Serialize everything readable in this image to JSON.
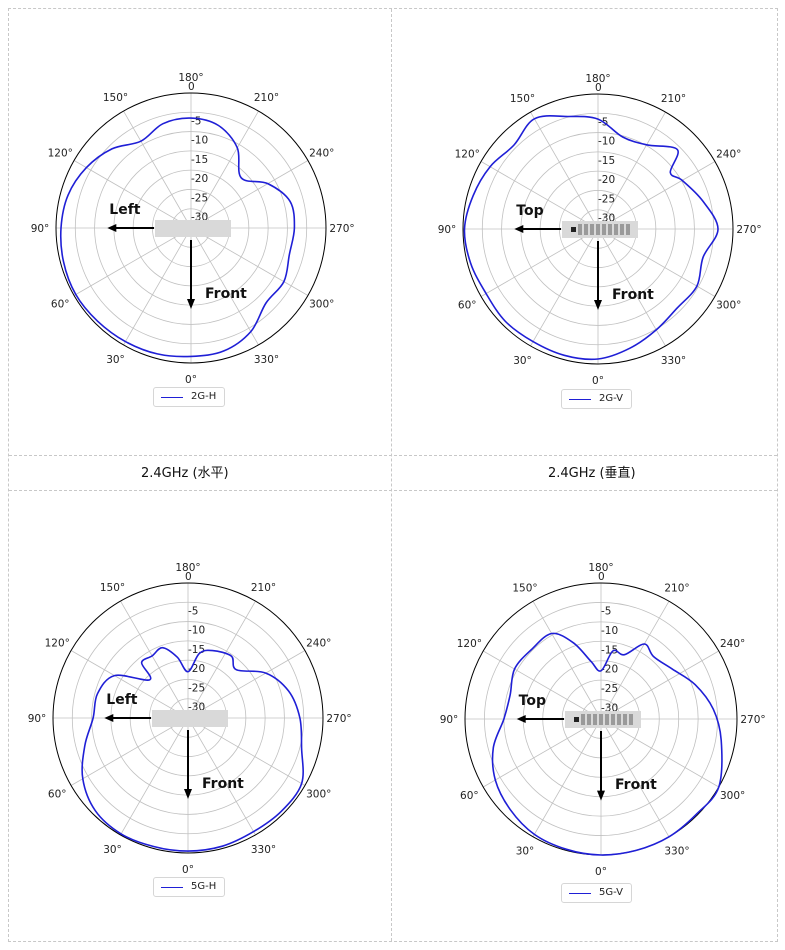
{
  "colors": {
    "series": "#1f1fd6",
    "grid": "#c0c0c0",
    "outer": "#000000",
    "arrow": "#000000",
    "device": "#d9d9d9"
  },
  "captions": [
    "2.4GHz (水平)",
    "2.4GHz (垂直)"
  ],
  "chart_data": [
    {
      "type": "polar-line",
      "legend": "2G-H",
      "legend_position": "bottom-left",
      "direction_labels": {
        "arrow_left": "Left",
        "arrow_down": "Front"
      },
      "angle_ticks": [
        "0°",
        "30°",
        "60°",
        "90°",
        "120°",
        "150°",
        "180°",
        "210°",
        "240°",
        "270°",
        "300°",
        "330°"
      ],
      "radial_ticks": [
        "0",
        "-5",
        "-10",
        "-15",
        "-20",
        "-25",
        "-30"
      ],
      "rlim": [
        -35,
        0
      ],
      "zero_angle": "bottom",
      "angle_direction": "clockwise",
      "grid": true,
      "series": [
        {
          "name": "2G-H",
          "angles": [
            0,
            15,
            30,
            45,
            60,
            75,
            90,
            105,
            120,
            135,
            150,
            165,
            180,
            195,
            210,
            225,
            240,
            255,
            270,
            285,
            300,
            315,
            330,
            345
          ],
          "values": [
            -1.7,
            -1.2,
            -1,
            -0.8,
            -0.5,
            -0.8,
            -1.3,
            -2,
            -3.7,
            -6,
            -9,
            -7,
            -6.5,
            -7.5,
            -11,
            -16.6,
            -12,
            -8.4,
            -8.2,
            -8.6,
            -7.2,
            -7.5,
            -4,
            -2
          ]
        }
      ]
    },
    {
      "type": "polar-line",
      "legend": "2G-V",
      "legend_position": "bottom-left",
      "direction_labels": {
        "arrow_left": "Top",
        "arrow_down": "Front"
      },
      "angle_ticks": [
        "0°",
        "30°",
        "60°",
        "90°",
        "120°",
        "150°",
        "180°",
        "210°",
        "240°",
        "270°",
        "300°",
        "330°"
      ],
      "radial_ticks": [
        "0",
        "-5",
        "-10",
        "-15",
        "-20",
        "-25",
        "-30"
      ],
      "rlim": [
        -35,
        0
      ],
      "zero_angle": "bottom",
      "angle_direction": "clockwise",
      "grid": true,
      "series": [
        {
          "name": "2G-V",
          "angles": [
            0,
            15,
            30,
            45,
            60,
            75,
            90,
            105,
            120,
            135,
            150,
            165,
            180,
            195,
            210,
            225,
            232,
            240,
            255,
            270,
            285,
            300,
            315,
            330,
            345
          ],
          "values": [
            -1.3,
            -1.1,
            -1.3,
            -1.1,
            -1.5,
            -0.8,
            -0.4,
            -1.5,
            -2.7,
            -4.2,
            -2,
            -4.8,
            -6.5,
            -10.3,
            -9.8,
            -5.9,
            -11.2,
            -9.8,
            -6.9,
            -3.9,
            -6.8,
            -5.4,
            -6,
            -4.8,
            -3
          ]
        }
      ]
    },
    {
      "type": "polar-line",
      "legend": "5G-H",
      "legend_position": "bottom-left",
      "direction_labels": {
        "arrow_left": "Left",
        "arrow_down": "Front"
      },
      "angle_ticks": [
        "0°",
        "30°",
        "60°",
        "90°",
        "120°",
        "150°",
        "180°",
        "210°",
        "240°",
        "270°",
        "300°",
        "330°"
      ],
      "radial_ticks": [
        "0",
        "-5",
        "-10",
        "-15",
        "-20",
        "-25",
        "-30"
      ],
      "rlim": [
        -35,
        0
      ],
      "zero_angle": "bottom",
      "angle_direction": "clockwise",
      "grid": true,
      "series": [
        {
          "name": "5G-H",
          "angles": [
            0,
            15,
            30,
            45,
            60,
            75,
            90,
            105,
            120,
            135,
            140,
            150,
            160,
            170,
            180,
            190,
            200,
            215,
            225,
            240,
            255,
            270,
            285,
            300,
            315,
            330,
            345
          ],
          "values": [
            -0.5,
            -0.5,
            -0.3,
            -1,
            -3.5,
            -7.3,
            -10.4,
            -10.7,
            -13,
            -21,
            -16.3,
            -16.4,
            -15.6,
            -19,
            -23,
            -18,
            -16.4,
            -15.4,
            -17.3,
            -11.7,
            -8,
            -6,
            -4.5,
            -1,
            -0.8,
            -1,
            -0.6
          ]
        }
      ]
    },
    {
      "type": "polar-line",
      "legend": "5G-V",
      "legend_position": "bottom-left",
      "direction_labels": {
        "arrow_left": "Top",
        "arrow_down": "Front"
      },
      "angle_ticks": [
        "0°",
        "30°",
        "60°",
        "90°",
        "120°",
        "150°",
        "180°",
        "210°",
        "240°",
        "270°",
        "300°",
        "330°"
      ],
      "radial_ticks": [
        "0",
        "-5",
        "-10",
        "-15",
        "-20",
        "-25",
        "-30"
      ],
      "rlim": [
        -35,
        0
      ],
      "zero_angle": "bottom",
      "angle_direction": "clockwise",
      "grid": true,
      "series": [
        {
          "name": "5G-V",
          "angles": [
            0,
            15,
            30,
            45,
            60,
            75,
            90,
            105,
            120,
            135,
            150,
            160,
            170,
            180,
            190,
            200,
            210,
            220,
            235,
            250,
            265,
            280,
            300,
            315,
            330,
            345
          ],
          "values": [
            0,
            -0.3,
            -0.7,
            -2,
            -3.6,
            -6.3,
            -10,
            -10.8,
            -9.3,
            -9.7,
            -9.6,
            -14.1,
            -19.9,
            -22.6,
            -17.2,
            -17.4,
            -12.7,
            -14,
            -12.6,
            -9.2,
            -6,
            -3.6,
            0,
            -0.3,
            0,
            0
          ]
        }
      ]
    }
  ]
}
